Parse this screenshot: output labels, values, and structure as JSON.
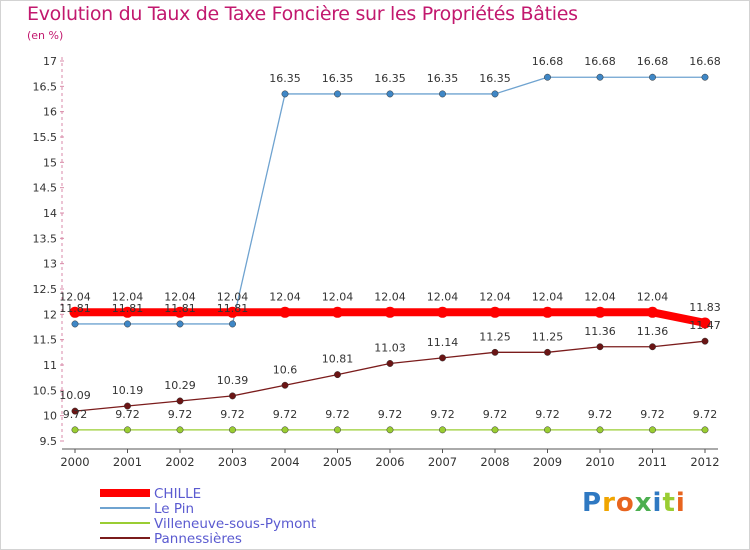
{
  "chart_data": {
    "type": "line",
    "title": "Evolution du Taux de Taxe Foncière sur les Propriétés Bâties",
    "subtitle": "(en %)",
    "xlabel": "",
    "ylabel": "",
    "ylim": [
      9.5,
      17
    ],
    "grid": false,
    "legend_position": "bottom-left",
    "categories": [
      "2000",
      "2001",
      "2002",
      "2003",
      "2004",
      "2005",
      "2006",
      "2007",
      "2008",
      "2009",
      "2010",
      "2011",
      "2012"
    ],
    "y_ticks": [
      "9.5",
      "10",
      "10.5",
      "11",
      "11.5",
      "12",
      "12.5",
      "13",
      "13.5",
      "14",
      "14.5",
      "15",
      "15.5",
      "16",
      "16.5",
      "17"
    ],
    "series": [
      {
        "name": "Villeneuve-sous-Pymont",
        "color": "#9acd32",
        "marker_color": "#9acd32",
        "values": [
          9.72,
          9.72,
          9.72,
          9.72,
          9.72,
          9.72,
          9.72,
          9.72,
          9.72,
          9.72,
          9.72,
          9.72,
          9.72
        ],
        "labels": [
          "9.72",
          "9.72",
          "9.72",
          "9.72",
          "9.72",
          "9.72",
          "9.72",
          "9.72",
          "9.72",
          "9.72",
          "9.72",
          "9.72",
          "9.72"
        ]
      },
      {
        "name": "Pannessières",
        "color": "#7b1c1c",
        "marker_color": "#6b1515",
        "values": [
          10.09,
          10.19,
          10.29,
          10.39,
          10.6,
          10.81,
          11.03,
          11.14,
          11.25,
          11.25,
          11.36,
          11.36,
          11.47
        ],
        "labels": [
          "10.09",
          "10.19",
          "10.29",
          "10.39",
          "10.6",
          "10.81",
          "11.03",
          "11.14",
          "11.25",
          "11.25",
          "11.36",
          "11.36",
          "11.47"
        ]
      },
      {
        "name": "Le Pin",
        "color": "#6fa3d0",
        "marker_color": "#3f87c6",
        "values": [
          11.81,
          11.81,
          11.81,
          11.81,
          16.35,
          16.35,
          16.35,
          16.35,
          16.35,
          16.68,
          16.68,
          16.68,
          16.68
        ],
        "labels": [
          "11.81",
          "11.81",
          "11.81",
          "11.81",
          "16.35",
          "16.35",
          "16.35",
          "16.35",
          "16.35",
          "16.68",
          "16.68",
          "16.68",
          "16.68"
        ]
      },
      {
        "name": "CHILLE",
        "color": "#ff0000",
        "marker_color": "#ff0000",
        "values": [
          12.04,
          12.04,
          12.04,
          12.04,
          12.04,
          12.04,
          12.04,
          12.04,
          12.04,
          12.04,
          12.04,
          12.04,
          11.83
        ],
        "labels": [
          "12.04",
          "12.04",
          "12.04",
          "12.04",
          "12.04",
          "12.04",
          "12.04",
          "12.04",
          "12.04",
          "12.04",
          "12.04",
          "12.04",
          "11.83"
        ]
      }
    ],
    "legend": [
      "CHILLE",
      "Le Pin",
      "Villeneuve-sous-Pymont",
      "Pannessières"
    ]
  },
  "brand": {
    "letters": [
      "P",
      "r",
      "o",
      "x",
      "i",
      "t",
      "i"
    ],
    "colors": [
      "#2f79c2",
      "#f0a500",
      "#e8641e",
      "#4caf50",
      "#2f79c2",
      "#9acd32",
      "#e8641e"
    ]
  }
}
